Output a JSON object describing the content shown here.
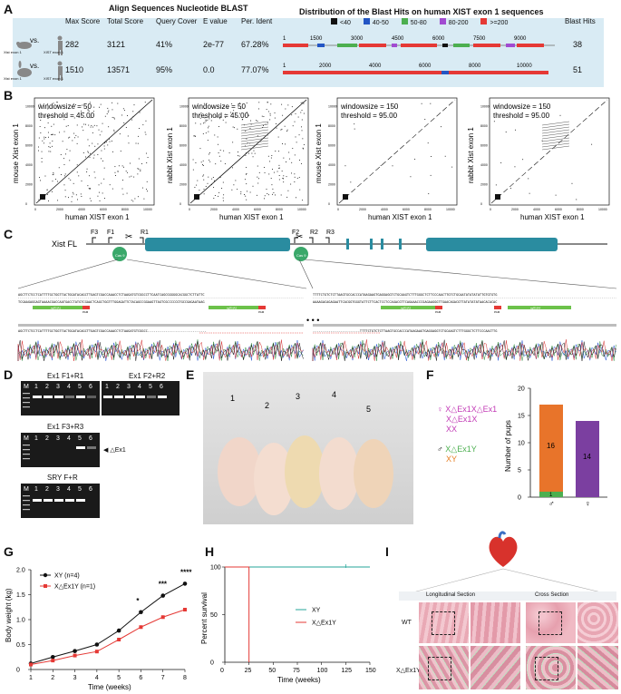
{
  "panel_labels": {
    "a": "A",
    "b": "B",
    "c": "C",
    "d": "D",
    "e": "E",
    "f": "F",
    "g": "G",
    "h": "H",
    "i": "I"
  },
  "blast": {
    "title": "Align Sequences Nucleotide BLAST",
    "headers": [
      "Max Score",
      "Total Score",
      "Query Cover",
      "E value",
      "Per. Ident"
    ],
    "rows": [
      {
        "animal": "Xist exon 1",
        "human": "XIST exon 1",
        "vs": "vs.",
        "values": [
          "282",
          "3121",
          "41%",
          "2e-77",
          "67.28%"
        ],
        "hits": "38",
        "ticks": [
          "1",
          "1500",
          "3000",
          "4500",
          "6000",
          "7500",
          "9000"
        ]
      },
      {
        "animal": "Xist exon 1",
        "human": "XIST exon 1",
        "vs": "vs.",
        "values": [
          "1510",
          "13571",
          "95%",
          "0.0",
          "77.07%"
        ],
        "hits": "51",
        "ticks": [
          "1",
          "2000",
          "4000",
          "6000",
          "8000",
          "10000"
        ]
      }
    ],
    "dist_title": "Distribution of the Blast Hits on human XIST exon 1 sequences",
    "legend": [
      {
        "label": "<40",
        "color": "#111111"
      },
      {
        "label": "40-50",
        "color": "#2255c4"
      },
      {
        "label": "50-80",
        "color": "#4caf50"
      },
      {
        "label": "80-200",
        "color": "#a14bd1"
      },
      {
        "label": ">=200",
        "color": "#e53935"
      }
    ],
    "hits_header": "Blast Hits"
  },
  "dotplots": [
    {
      "ylabel": "mouse Xist exon 1",
      "xlabel": "human XIST exon 1",
      "windowsize": "windowsize = 50",
      "threshold": "threshold = 45.00",
      "yticks": [
        "0",
        "2000",
        "4000",
        "6000",
        "8000",
        "10000"
      ],
      "xticks": [
        "0",
        "2000",
        "4000",
        "6000",
        "8000",
        "10000"
      ]
    },
    {
      "ylabel": "rabbit Xist exon 1",
      "xlabel": "human XIST exon 1",
      "windowsize": "windowsize = 50",
      "threshold": "threshold = 45.00",
      "yticks": [
        "0",
        "2000",
        "4000",
        "6000",
        "8000",
        "10000"
      ],
      "xticks": [
        "0",
        "2000",
        "4000",
        "6000",
        "8000",
        "10000"
      ]
    },
    {
      "ylabel": "mouse Xist exon 1",
      "xlabel": "human XIST exon 1",
      "windowsize": "windowsize = 150",
      "threshold": "threshold = 95.00",
      "yticks": [
        "0",
        "2000",
        "4000",
        "6000",
        "8000",
        "10000"
      ],
      "xticks": [
        "0",
        "2000",
        "4000",
        "6000",
        "8000",
        "10000"
      ]
    },
    {
      "ylabel": "rabbit Xist exon 1",
      "xlabel": "human XIST exon 1",
      "windowsize": "windowsize = 150",
      "threshold": "threshold = 95.00",
      "yticks": [
        "0",
        "2000",
        "4000",
        "6000",
        "8000",
        "10000"
      ],
      "xticks": [
        "0",
        "2000",
        "4000",
        "6000",
        "8000",
        "10000"
      ]
    }
  ],
  "gene": {
    "label": "Xist FL",
    "primers": [
      "F3",
      "F1",
      "R1",
      "F2",
      "R2",
      "R3"
    ],
    "cas9": "Cas 9",
    "seq_top_left": "AGCTTCTCCTCATTTTGCTGGTTACTGGATACAGCTTGAGTCGACCAAACCTCTAAGATGTCGGCCTTCAATCAGCGGGGGCACGGCTCTTATTC",
    "seq_bot_left": "TCGAAGAGGAGTAAAACGACCAATGACCTATGTCGAACTCAGCTGGTTTGGAGATTCTACAGCCGGAAGTTAGTCGCCCCCGTGCCGAGAATAAG",
    "seq_top_right": "TTTTCTGTCTCTTAAGTGCCACCCATAAGAAGTGAGGAGGTCTGCAAGTCTTTGGGCTCTTCCCAACTTGTCTGCAATATATATATTGTGTGTG",
    "seq_bot_right": "AAAAGACAGAGAATTCACGGTGGGTATTCTTCACTCCTCCAGACGTTCAGAAACCCGAGAAGGGTTGAACAGACGTTATATATATAACACACAC",
    "mut_left": "AGCTTCTCCTCATTTTGCTGGTTACTGGATACAGCTTGAGTCGACCAAACCTCTAAGATGTCGGCC------------------------------",
    "mut_right": "------------------------TTTTCTGTCTCTTAAGTGCCACCCATAAGAAGTGAGGAGGTCTGCAAGTCTTTGGGCTCTTCCCAACTTG",
    "sgrna_left_1": "sgRNA1",
    "pam_left_1": "PAM",
    "sgrna_left_2": "sgRNA2",
    "pam_left_2": "PAM",
    "sgrna_right_1": "sgRNA3",
    "pam_right_1": "PAM",
    "sgrna_right_2": "sgRNA4",
    "pam_right_2": "PAM",
    "ellipsis": "• • •"
  },
  "gels": [
    {
      "title": "Ex1 F1+R1",
      "lanes": [
        "M",
        "1",
        "2",
        "3",
        "4",
        "5",
        "6"
      ]
    },
    {
      "title": "Ex1 F2+R2",
      "lanes": [
        "1",
        "2",
        "3",
        "4",
        "5",
        "6"
      ]
    },
    {
      "title": "Ex1 F3+R3",
      "lanes": [
        "M",
        "1",
        "2",
        "3",
        "4",
        "5",
        "6"
      ],
      "marker": "◀ △Ex1"
    },
    {
      "title": "SRY F+R",
      "lanes": [
        "M",
        "1",
        "2",
        "3",
        "4",
        "5",
        "6"
      ]
    }
  ],
  "pups": {
    "labels": [
      "1",
      "2",
      "3",
      "4",
      "5"
    ]
  },
  "genotypes": {
    "female_symbol": "♀",
    "female_types": [
      "X△Ex1X△Ex1",
      "X△Ex1X",
      "XX"
    ],
    "male_symbol": "♂",
    "male_types": [
      "X△Ex1Y",
      "XY"
    ],
    "colors": {
      "female": "#c23bb6",
      "male_mut": "#4caf50",
      "male_wt": "#e67e22"
    }
  },
  "chart_data": [
    {
      "type": "bar",
      "panel": "F",
      "ylabel": "Number of pups",
      "ylim": [
        0,
        20
      ],
      "yticks": [
        "0",
        "5",
        "10",
        "15",
        "20"
      ],
      "categories": [
        "♂",
        "♀"
      ],
      "series": [
        {
          "name": "XY",
          "values": [
            16,
            0
          ],
          "color": "#e8742a"
        },
        {
          "name": "X△Ex1Y",
          "values": [
            1,
            0
          ],
          "color": "#4caf50"
        },
        {
          "name": "female",
          "values": [
            0,
            14
          ],
          "color": "#7b3fa0"
        }
      ],
      "data_labels": [
        "16",
        "1",
        "14"
      ]
    },
    {
      "type": "line",
      "panel": "G",
      "xlabel": "Time  (weeks)",
      "ylabel": "Body weight (kg)",
      "ylim": [
        0,
        2.0
      ],
      "yticks": [
        "0",
        "0.5",
        "1.0",
        "1.5",
        "2.0"
      ],
      "x": [
        1,
        2,
        3,
        4,
        5,
        6,
        7,
        8
      ],
      "xticks": [
        "1",
        "2",
        "3",
        "4",
        "5",
        "6",
        "7",
        "8"
      ],
      "series": [
        {
          "name": "XY (n=4)",
          "values": [
            0.12,
            0.25,
            0.37,
            0.5,
            0.78,
            1.15,
            1.48,
            1.72
          ],
          "color": "#111111"
        },
        {
          "name": "X△Ex1Y (n=1)",
          "values": [
            0.1,
            0.18,
            0.28,
            0.36,
            0.6,
            0.85,
            1.05,
            1.2
          ],
          "color": "#e53935"
        }
      ],
      "significance": [
        {
          "x": 6,
          "label": "*"
        },
        {
          "x": 7,
          "label": "***"
        },
        {
          "x": 8,
          "label": "****"
        }
      ]
    },
    {
      "type": "line",
      "panel": "H",
      "xlabel": "Time (weeks)",
      "ylabel": "Percent survival",
      "ylim": [
        0,
        100
      ],
      "yticks": [
        "0",
        "50",
        "100"
      ],
      "xlim": [
        0,
        150
      ],
      "xticks": [
        "0",
        "25",
        "50",
        "75",
        "100",
        "125",
        "150"
      ],
      "series": [
        {
          "name": "XY",
          "x": [
            0,
            150
          ],
          "values": [
            100,
            100
          ],
          "color": "#26a69a"
        },
        {
          "name": "X△Ex1Y",
          "x": [
            0,
            25,
            25
          ],
          "values": [
            100,
            100,
            0
          ],
          "color": "#e53935"
        }
      ]
    }
  ],
  "histology": {
    "long_title": "Longitudinal Section",
    "cross_title": "Cross Section",
    "row_wt": "WT",
    "row_ko": "X△Ex1Y"
  }
}
